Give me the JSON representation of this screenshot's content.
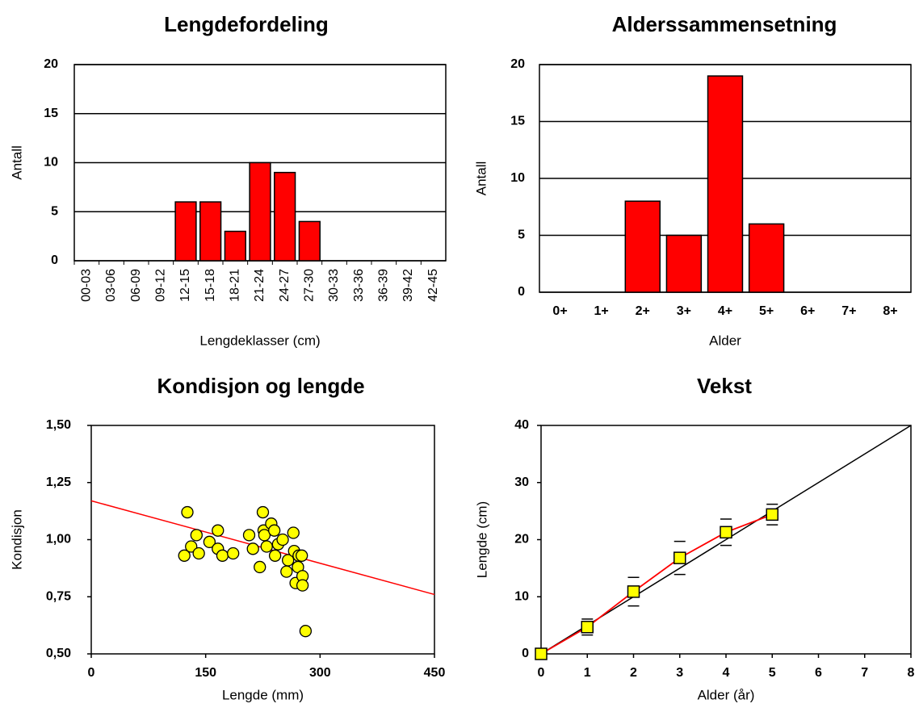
{
  "chart_data": [
    {
      "type": "bar",
      "title": "Lengdefordeling",
      "x_label": "Lengdeklasser (cm)",
      "y_label": "Antall",
      "categories": [
        "00-03",
        "03-06",
        "06-09",
        "09-12",
        "12-15",
        "15-18",
        "18-21",
        "21-24",
        "24-27",
        "27-30",
        "30-33",
        "33-36",
        "36-39",
        "39-42",
        "42-45"
      ],
      "values": [
        0,
        0,
        0,
        0,
        6,
        6,
        3,
        10,
        9,
        4,
        0,
        0,
        0,
        0,
        0
      ],
      "color": "#ff0000",
      "ylim": [
        0,
        20
      ],
      "yticks": [
        0,
        5,
        10,
        15,
        20
      ],
      "grid": true
    },
    {
      "type": "bar",
      "title": "Alderssammensetning",
      "x_label": "Alder",
      "y_label": "Antall",
      "categories": [
        "0+",
        "1+",
        "2+",
        "3+",
        "4+",
        "5+",
        "6+",
        "7+",
        "8+"
      ],
      "values": [
        0,
        0,
        8,
        5,
        19,
        6,
        0,
        0,
        0
      ],
      "color": "#ff0000",
      "ylim": [
        0,
        20
      ],
      "yticks": [
        0,
        5,
        10,
        15,
        20
      ],
      "grid": true
    },
    {
      "type": "scatter",
      "title": "Kondisjon og lengde",
      "x_label": "Lengde (mm)",
      "y_label": "Kondisjon",
      "x": [
        126,
        122,
        131,
        138,
        141,
        155,
        166,
        166,
        172,
        186,
        207,
        212,
        221,
        225,
        226,
        227,
        230,
        236,
        240,
        241,
        245,
        251,
        256,
        258,
        265,
        266,
        268,
        271,
        272,
        276,
        277,
        277,
        281
      ],
      "values": [
        1.12,
        0.93,
        0.97,
        1.02,
        0.94,
        0.99,
        1.04,
        0.96,
        0.93,
        0.94,
        1.02,
        0.96,
        0.88,
        1.12,
        1.04,
        1.02,
        0.97,
        1.07,
        1.04,
        0.93,
        0.98,
        1.0,
        0.86,
        0.91,
        1.03,
        0.95,
        0.81,
        0.88,
        0.93,
        0.93,
        0.84,
        0.8,
        0.6
      ],
      "color": "#ffff00",
      "trend_line": {
        "x": [
          0,
          450
        ],
        "values": [
          1.17,
          0.76
        ],
        "color": "#ff0000"
      },
      "xlim": [
        0,
        450
      ],
      "xticks": [
        0,
        150,
        300,
        450
      ],
      "ylim": [
        0.5,
        1.5
      ],
      "yticks": [
        {
          "value": 0.5,
          "label": "0,50"
        },
        {
          "value": 0.75,
          "label": "0,75"
        },
        {
          "value": 1.0,
          "label": "1,00"
        },
        {
          "value": 1.25,
          "label": "1,25"
        },
        {
          "value": 1.5,
          "label": "1,50"
        }
      ]
    },
    {
      "type": "line",
      "title": "Vekst",
      "x_label": "Alder (år)",
      "y_label": "Lengde (cm)",
      "x": [
        0,
        1,
        2,
        3,
        4,
        5
      ],
      "values": [
        0,
        4.7,
        10.9,
        16.8,
        21.3,
        24.4
      ],
      "errors": [
        null,
        1.4,
        2.5,
        2.9,
        2.3,
        1.8
      ],
      "color": "#ff0000",
      "marker_color": "#ffff00",
      "reference_line": {
        "x": [
          0,
          8
        ],
        "values": [
          0,
          40
        ],
        "color": "#000000"
      },
      "xlim": [
        0,
        8
      ],
      "xticks": [
        0,
        1,
        2,
        3,
        4,
        5,
        6,
        7,
        8
      ],
      "ylim": [
        0,
        40
      ],
      "yticks": [
        0,
        10,
        20,
        30,
        40
      ]
    }
  ]
}
